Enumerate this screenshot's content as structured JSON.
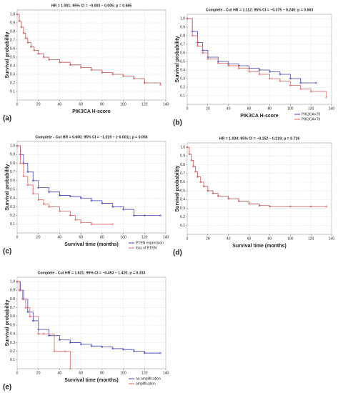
{
  "chart_data": [
    {
      "type": "line",
      "panel_label": "(a)",
      "title": "HR = 1.001; 95% CI = −0.003 – 0.005; p = 0.685",
      "xlabel": "PIK3CA H-score",
      "ylabel": "Survival probability",
      "xlim": [
        0,
        140
      ],
      "xticks": [
        0,
        20,
        40,
        60,
        80,
        100,
        120,
        140
      ],
      "ylim": [
        0,
        1.05
      ],
      "yticks": [
        0.1,
        0.2,
        0.3,
        0.4,
        0.5,
        0.6,
        0.7,
        0.8,
        0.9,
        {
          "value": 1,
          "label": "1.0"
        }
      ],
      "grid": true,
      "series": [
        {
          "color": "#c0504d",
          "x": [
            0,
            2,
            4,
            6,
            8,
            10,
            13,
            16,
            20,
            25,
            30,
            40,
            50,
            60,
            70,
            80,
            90,
            100,
            110,
            120,
            135
          ],
          "values": [
            1.0,
            0.92,
            0.85,
            0.78,
            0.72,
            0.67,
            0.62,
            0.58,
            0.54,
            0.5,
            0.47,
            0.44,
            0.41,
            0.38,
            0.35,
            0.32,
            0.3,
            0.28,
            0.25,
            0.2,
            0.18
          ]
        }
      ]
    },
    {
      "type": "line",
      "panel_label": "(b)",
      "title": "Complete - Cut   HR = 1.112; 95% CI = −0.375 – 0.245; p = 0.663",
      "xlabel": "PIK3CA H-score",
      "ylabel": "Survival probability",
      "xlim": [
        0,
        140
      ],
      "xticks": [
        0,
        20,
        40,
        60,
        80,
        100,
        120,
        140
      ],
      "ylim": [
        0,
        1.05
      ],
      "yticks": [
        0.1,
        0.2,
        0.3,
        0.4,
        0.5,
        0.6,
        0.7,
        0.8,
        0.9,
        {
          "value": 1,
          "label": "1.0"
        }
      ],
      "grid": true,
      "legend": "bottom-right",
      "series": [
        {
          "name": "PIK3CA<70",
          "color": "#4040c0",
          "x": [
            0,
            5,
            10,
            15,
            20,
            30,
            40,
            50,
            60,
            70,
            80,
            90,
            100,
            110,
            125
          ],
          "values": [
            1.0,
            0.85,
            0.72,
            0.63,
            0.55,
            0.5,
            0.47,
            0.45,
            0.42,
            0.4,
            0.38,
            0.35,
            0.3,
            0.25,
            0.25
          ]
        },
        {
          "name": "PIK3CA>70",
          "color": "#e06060",
          "x": [
            0,
            5,
            10,
            15,
            20,
            30,
            40,
            50,
            60,
            70,
            80,
            90,
            100,
            110,
            120,
            135
          ],
          "values": [
            1.0,
            0.8,
            0.68,
            0.6,
            0.53,
            0.48,
            0.45,
            0.42,
            0.38,
            0.35,
            0.3,
            0.27,
            0.22,
            0.18,
            0.15,
            0.08
          ]
        }
      ]
    },
    {
      "type": "line",
      "panel_label": "(c)",
      "title": "Complete - Cut   HR = 0.600; 95% CI = −1.019 – (−0.001); p = 0.056",
      "xlabel": "Survival time (months)",
      "ylabel": "Survival probability",
      "xlim": [
        0,
        140
      ],
      "xticks": [
        0,
        20,
        40,
        60,
        80,
        100,
        120,
        140
      ],
      "ylim": [
        0,
        1.05
      ],
      "yticks": [
        0.1,
        0.2,
        0.3,
        0.4,
        0.5,
        0.6,
        0.7,
        0.8,
        0.9,
        {
          "value": 1,
          "label": "1.0"
        }
      ],
      "grid": true,
      "legend": "bottom-right",
      "series": [
        {
          "name": "PTEN expression",
          "color": "#4040c0",
          "x": [
            0,
            3,
            6,
            10,
            15,
            20,
            30,
            40,
            50,
            60,
            70,
            80,
            90,
            100,
            110,
            120,
            135
          ],
          "values": [
            1.0,
            0.9,
            0.8,
            0.7,
            0.6,
            0.52,
            0.47,
            0.43,
            0.42,
            0.4,
            0.37,
            0.34,
            0.3,
            0.27,
            0.2,
            0.2,
            0.2
          ]
        },
        {
          "name": "loss of PTEN",
          "color": "#e06060",
          "x": [
            0,
            3,
            6,
            10,
            15,
            20,
            25,
            30,
            40,
            50,
            55,
            60,
            70,
            90
          ],
          "values": [
            1.0,
            0.8,
            0.65,
            0.55,
            0.45,
            0.38,
            0.33,
            0.3,
            0.25,
            0.2,
            0.15,
            0.12,
            0.1,
            0.1
          ]
        }
      ]
    },
    {
      "type": "line",
      "panel_label": "(d)",
      "title": "HR = 1.034; 95% CI = −0.152 – 0.219; p = 0.726",
      "xlabel": "Survival time (months)",
      "ylabel": "Survival probability",
      "xlim": [
        0,
        140
      ],
      "xticks": [
        0,
        20,
        40,
        60,
        80,
        100,
        120,
        140
      ],
      "ylim": [
        0,
        1.05
      ],
      "yticks": [
        0.1,
        0.2,
        0.3,
        0.4,
        0.5,
        0.6,
        0.7,
        0.8,
        0.9,
        {
          "value": 1,
          "label": "1.0"
        }
      ],
      "grid": true,
      "series": [
        {
          "color": "#c0504d",
          "x": [
            0,
            2,
            4,
            6,
            8,
            10,
            13,
            16,
            20,
            25,
            30,
            40,
            50,
            60,
            70,
            80,
            100,
            120,
            135
          ],
          "values": [
            1.0,
            0.92,
            0.85,
            0.78,
            0.72,
            0.66,
            0.6,
            0.55,
            0.5,
            0.47,
            0.44,
            0.41,
            0.38,
            0.35,
            0.33,
            0.32,
            0.32,
            0.32,
            0.32
          ]
        }
      ]
    },
    {
      "type": "line",
      "panel_label": "(e)",
      "title": "Complete - Cut   HR = 1.621; 95% CI = −0.453 – 1.420; p = 0.333",
      "xlabel": "Survival time (months)",
      "ylabel": "Survival probability",
      "xlim": [
        0,
        140
      ],
      "xticks": [
        0,
        20,
        40,
        60,
        80,
        100,
        120,
        140
      ],
      "ylim": [
        0,
        1.05
      ],
      "yticks": [
        0.1,
        0.2,
        0.3,
        0.4,
        0.5,
        0.6,
        0.7,
        0.8,
        0.9,
        {
          "value": 1,
          "label": "1.0"
        }
      ],
      "grid": true,
      "legend": "bottom-right",
      "series": [
        {
          "name": "no amplification",
          "color": "#4040c0",
          "x": [
            0,
            3,
            6,
            10,
            15,
            20,
            30,
            40,
            50,
            60,
            70,
            80,
            90,
            100,
            110,
            120,
            135
          ],
          "values": [
            1.0,
            0.9,
            0.8,
            0.65,
            0.55,
            0.45,
            0.38,
            0.33,
            0.3,
            0.28,
            0.26,
            0.25,
            0.23,
            0.22,
            0.2,
            0.18,
            0.18
          ]
        },
        {
          "name": "amplification",
          "color": "#e06060",
          "x": [
            0,
            2,
            5,
            8,
            12,
            20,
            25,
            35,
            45,
            50
          ],
          "values": [
            1.0,
            0.9,
            0.8,
            0.7,
            0.6,
            0.4,
            0.4,
            0.2,
            0.2,
            0.0
          ]
        }
      ]
    }
  ]
}
